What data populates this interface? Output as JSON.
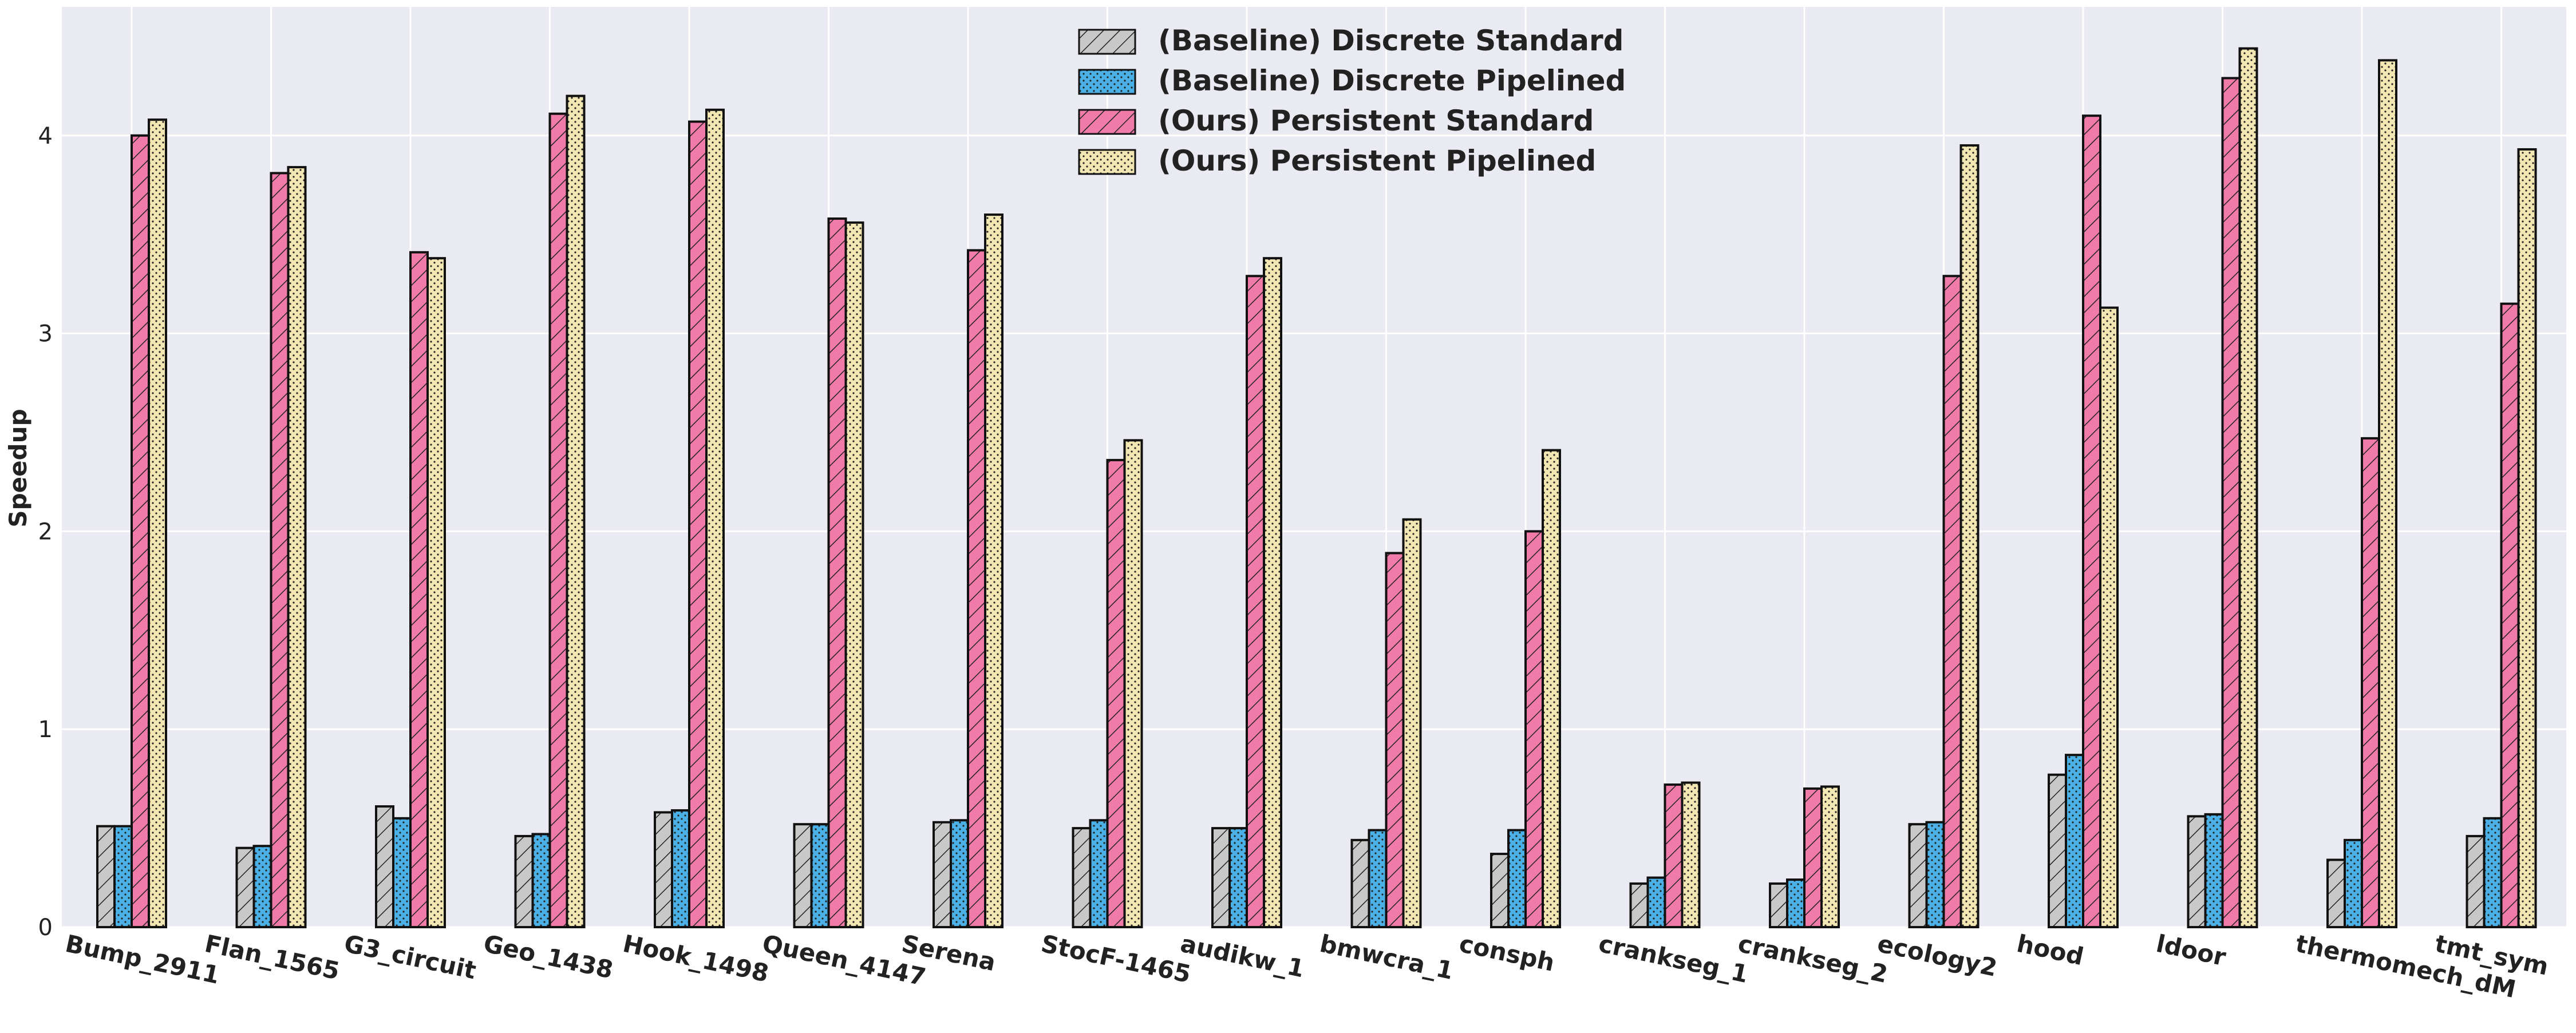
{
  "chart_data": {
    "type": "bar",
    "title": "",
    "xlabel": "",
    "ylabel": "Speedup",
    "ylim": [
      0,
      4.65
    ],
    "yticks": [
      0,
      1,
      2,
      3,
      4
    ],
    "grid": true,
    "legend_position": "top-center",
    "categories": [
      "Bump_2911",
      "Flan_1565",
      "G3_circuit",
      "Geo_1438",
      "Hook_1498",
      "Queen_4147",
      "Serena",
      "StocF-1465",
      "audikw_1",
      "bmwcra_1",
      "consph",
      "crankseg_1",
      "crankseg_2",
      "ecology2",
      "hood",
      "ldoor",
      "thermomech_dM",
      "tmt_sym"
    ],
    "series": [
      {
        "name": "(Baseline) Discrete Standard",
        "color": "#c8c8c8",
        "pattern": "hatch-diagonal",
        "values": [
          0.51,
          0.4,
          0.61,
          0.46,
          0.58,
          0.52,
          0.53,
          0.5,
          0.5,
          0.44,
          0.37,
          0.22,
          0.22,
          0.52,
          0.77,
          0.56,
          0.34,
          0.46
        ]
      },
      {
        "name": "(Baseline) Discrete Pipelined",
        "color": "#4bb0e6",
        "pattern": "dots",
        "values": [
          0.51,
          0.41,
          0.55,
          0.47,
          0.59,
          0.52,
          0.54,
          0.54,
          0.5,
          0.49,
          0.49,
          0.25,
          0.24,
          0.53,
          0.87,
          0.57,
          0.44,
          0.55
        ]
      },
      {
        "name": "(Ours) Persistent Standard",
        "color": "#f07aa8",
        "pattern": "hatch-diagonal",
        "values": [
          4.0,
          3.81,
          3.41,
          4.11,
          4.07,
          3.58,
          3.42,
          2.36,
          3.29,
          1.89,
          2.0,
          0.72,
          0.7,
          3.29,
          4.1,
          4.29,
          2.47,
          3.15
        ]
      },
      {
        "name": "(Ours) Persistent Pipelined",
        "color": "#f2e6b3",
        "pattern": "dots",
        "values": [
          4.08,
          3.84,
          3.38,
          4.2,
          4.13,
          3.56,
          3.6,
          2.46,
          3.38,
          2.06,
          2.41,
          0.73,
          0.71,
          3.95,
          3.13,
          4.44,
          4.38,
          3.93
        ]
      }
    ]
  }
}
